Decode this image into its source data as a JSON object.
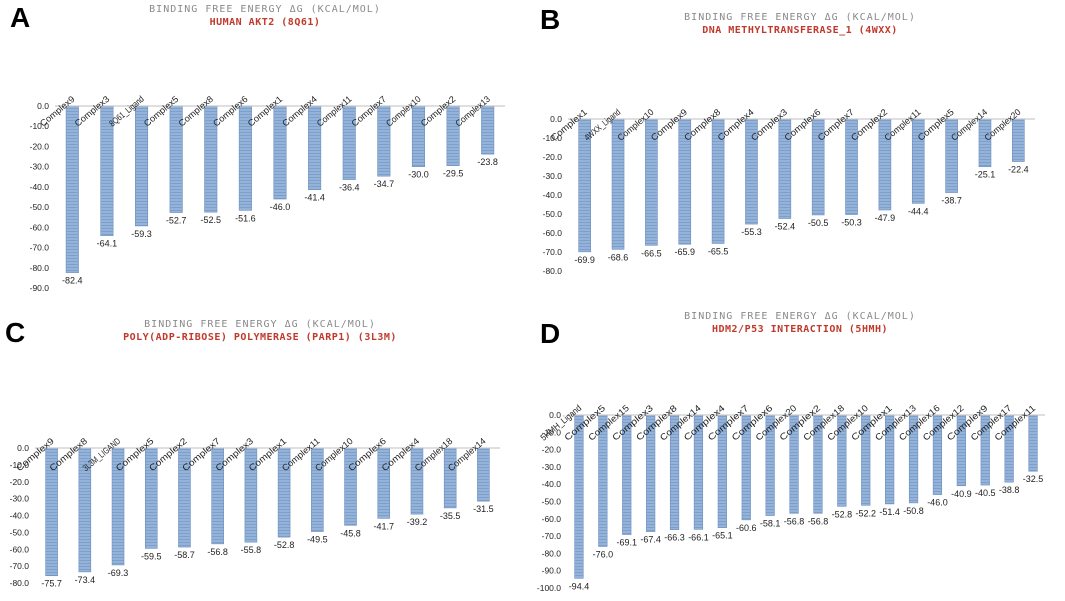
{
  "colors": {
    "bar": "#93b3db",
    "bar_stripe": "#7f9fc9",
    "bar_edge": "#6d8fbf",
    "axis": "#bfbfbf",
    "title": "#8a8a8a",
    "subtitle": "#c0392b",
    "text": "#222222"
  },
  "chart_data": [
    {
      "id": "A",
      "type": "bar",
      "title": "BINDING FREE ENERGY ΔG (KCAL/MOL)",
      "subtitle": "HUMAN AKT2 (8Q61)",
      "categories": [
        "Complex9",
        "Complex3",
        "8Q61_Ligand",
        "Complex5",
        "Complex8",
        "Complex6",
        "Complex1",
        "Complex4",
        "Complex11",
        "Complex7",
        "Complex10",
        "Complex2",
        "Complex13"
      ],
      "values": [
        -82.4,
        -64.1,
        -59.3,
        -52.7,
        -52.5,
        -51.6,
        -46.0,
        -41.4,
        -36.4,
        -34.7,
        -30.0,
        -29.5,
        -23.8
      ],
      "value_labels": [
        "-82.4",
        "-64.1",
        "-59.3",
        "-52.7",
        "-52.5",
        "-51.6",
        "-46.0",
        "-41.4",
        "-36.4",
        "-34.7",
        "-30.0",
        "-29.5",
        "-23.8"
      ],
      "yticks": [
        "0.0",
        "-10.0",
        "-20.0",
        "-30.0",
        "-40.0",
        "-50.0",
        "-60.0",
        "-70.0",
        "-80.0",
        "-90.0"
      ],
      "ylim": [
        -90,
        0
      ]
    },
    {
      "id": "B",
      "type": "bar",
      "title": "BINDING FREE ENERGY ΔG (KCAL/MOL)",
      "subtitle": "DNA METHYLTRANSFERASE_1 (4WXX)",
      "categories": [
        "Complex1",
        "4WXX_Ligand",
        "Complex10",
        "Complex9",
        "Complex8",
        "Complex4",
        "Complex3",
        "Complex6",
        "Complex7",
        "Complex2",
        "Complex11",
        "Complex5",
        "Complex14",
        "Complex20"
      ],
      "values": [
        -69.9,
        -68.6,
        -66.5,
        -65.9,
        -65.5,
        -55.3,
        -52.4,
        -50.5,
        -50.3,
        -47.9,
        -44.4,
        -38.7,
        -25.1,
        -22.4
      ],
      "value_labels": [
        "-69.9",
        "-68.6",
        "-66.5",
        "-65.9",
        "-65.5",
        "-55.3",
        "-52.4",
        "-50.5",
        "-50.3",
        "-47.9",
        "-44.4",
        "-38.7",
        "-25.1",
        "-22.4"
      ],
      "yticks": [
        "0.0",
        "-10.0",
        "-20.0",
        "-30.0",
        "-40.0",
        "-50.0",
        "-60.0",
        "-70.0",
        "-80.0"
      ],
      "ylim": [
        -80,
        0
      ]
    },
    {
      "id": "C",
      "type": "bar",
      "title": "BINDING FREE ENERGY ΔG (KCAL/MOL)",
      "subtitle": "POLY(ADP-RIBOSE) POLYMERASE (PARP1) (3L3M)",
      "categories": [
        "Complex9",
        "Complex8",
        "3L3M_LIGAND",
        "Complex5",
        "Complex2",
        "Complex7",
        "Complex3",
        "Complex1",
        "Complex11",
        "Complex10",
        "Complex6",
        "Complex4",
        "Complex18",
        "Complex14"
      ],
      "values": [
        -75.7,
        -73.4,
        -69.3,
        -59.5,
        -58.7,
        -56.8,
        -55.8,
        -52.8,
        -49.5,
        -45.8,
        -41.7,
        -39.2,
        -35.5,
        -31.5
      ],
      "value_labels": [
        "-75.7",
        "-73.4",
        "-69.3",
        "-59.5",
        "-58.7",
        "-56.8",
        "-55.8",
        "-52.8",
        "-49.5",
        "-45.8",
        "-41.7",
        "-39.2",
        "-35.5",
        "-31.5"
      ],
      "yticks": [
        "0.0",
        "-10.0",
        "-20.0",
        "-30.0",
        "-40.0",
        "-50.0",
        "-60.0",
        "-70.0",
        "-80.0"
      ],
      "ylim": [
        -80,
        0
      ]
    },
    {
      "id": "D",
      "type": "bar",
      "title": "BINDING FREE ENERGY ΔG (KCAL/MOL)",
      "subtitle": "HDM2/P53 INTERACTION (5HMH)",
      "categories": [
        "5HMH_Ligand",
        "Complex5",
        "Complex15",
        "Complex3",
        "Complex8",
        "Complex14",
        "Complex4",
        "Complex7",
        "Complex6",
        "Complex20",
        "Complex2",
        "Complex18",
        "Complex10",
        "Complex1",
        "Complex13",
        "Complex16",
        "Complex12",
        "Complex9",
        "Complex17",
        "Complex11"
      ],
      "values": [
        -94.4,
        -76.0,
        -69.1,
        -67.4,
        -66.3,
        -66.1,
        -65.1,
        -60.6,
        -58.1,
        -56.8,
        -56.8,
        -52.8,
        -52.2,
        -51.4,
        -50.8,
        -46.0,
        -40.9,
        -40.5,
        -38.8,
        -32.5
      ],
      "value_labels": [
        "-94.4",
        "-76.0",
        "-69.1",
        "-67.4",
        "-66.3",
        "-66.1",
        "-65.1",
        "-60.6",
        "-58.1",
        "-56.8",
        "-56.8",
        "-52.8",
        "-52.2",
        "-51.4",
        "-50.8",
        "-46.0",
        "-40.9",
        "-40.5",
        "-38.8",
        "-32.5"
      ],
      "yticks": [
        "0.0",
        "-10.0",
        "-20.0",
        "-30.0",
        "-40.0",
        "-50.0",
        "-60.0",
        "-70.0",
        "-80.0",
        "-90.0",
        "-100.0"
      ],
      "ylim": [
        -100,
        0
      ]
    }
  ]
}
